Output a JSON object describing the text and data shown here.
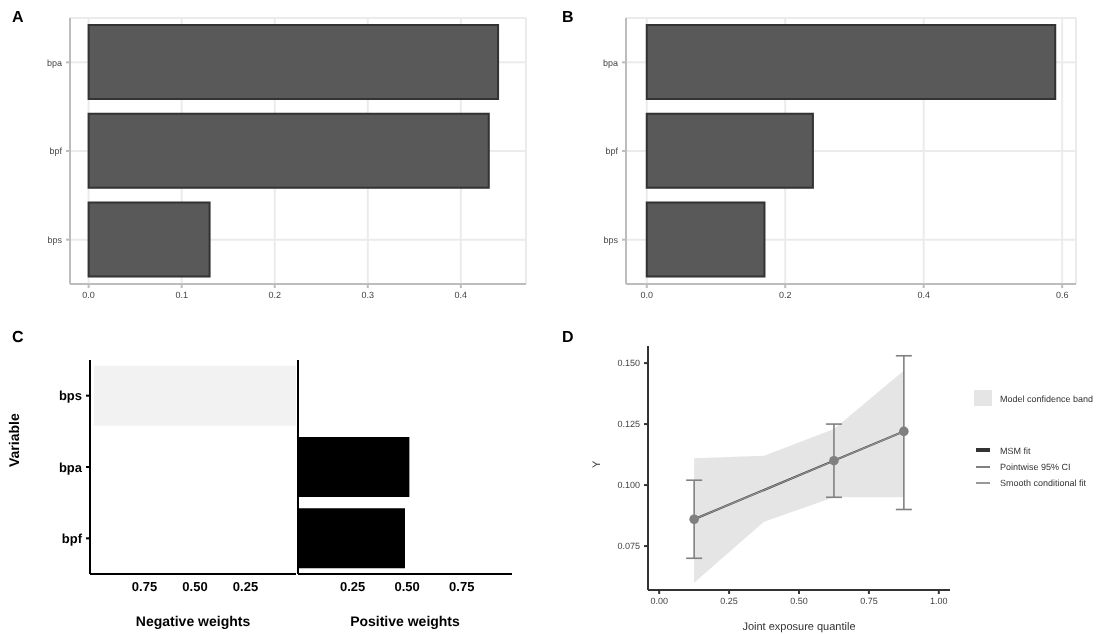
{
  "chart_data": [
    {
      "type": "bar",
      "orientation": "horizontal",
      "title": "A",
      "categories": [
        "bpa",
        "bpf",
        "bps"
      ],
      "values": [
        0.44,
        0.43,
        0.13
      ],
      "color": "#595959",
      "xlim": [
        -0.02,
        0.47
      ],
      "xticks": [
        {
          "value": 0,
          "label": "0.0"
        },
        0.1,
        0.2,
        0.3,
        0.4
      ],
      "grid": true
    },
    {
      "type": "bar",
      "orientation": "horizontal",
      "title": "B",
      "categories": [
        "bpa",
        "bpf",
        "bps"
      ],
      "values": [
        0.59,
        0.24,
        0.17
      ],
      "color": "#595959",
      "xlim": [
        -0.03,
        0.62
      ],
      "xticks": [
        {
          "value": 0,
          "label": "0.0"
        },
        0.2,
        0.4,
        0.6
      ],
      "grid": true
    },
    {
      "type": "bar",
      "orientation": "horizontal",
      "title": "C",
      "ylabel": "Variable",
      "xlabel": "Negative weights",
      "categories": [
        "bps",
        "bpa",
        "bpf"
      ],
      "values": [
        1.0,
        null,
        null
      ],
      "color": "#f2f2f2",
      "xlim": [
        1.02,
        0
      ],
      "xticks": [
        0.75,
        {
          "value": 0.5,
          "label": "0.50"
        },
        0.25
      ]
    },
    {
      "type": "bar",
      "orientation": "horizontal",
      "xlabel": "Positive weights",
      "categories": [
        null,
        null,
        null
      ],
      "values": [
        null,
        0.51,
        0.49
      ],
      "color": "#000000",
      "xlim": [
        0,
        0.98
      ],
      "xticks": [
        0.25,
        {
          "value": 0.5,
          "label": "0.50"
        },
        0.75
      ],
      "tick_labels": "x"
    },
    {
      "type": "line",
      "title": "D",
      "xlabel": "Joint exposure quantile",
      "ylabel": "Y",
      "xlim": [
        -0.04,
        1.04
      ],
      "xticks": [
        {
          "value": 0,
          "label": "0.00"
        },
        0.25,
        {
          "value": 0.5,
          "label": "0.50"
        },
        0.75,
        {
          "value": 1,
          "label": "1.00"
        }
      ],
      "ylim": [
        0.057,
        0.157
      ],
      "yticks": [
        0.075,
        {
          "value": 0.1,
          "label": "0.100"
        },
        0.125,
        {
          "value": 0.15,
          "label": "0.150"
        }
      ],
      "legend": "right",
      "annotations": [
        "Model confidence band"
      ],
      "series": [
        {
          "name": "MSM fit",
          "type": "line",
          "color": "#333333",
          "x": [
            0.125,
            0.375,
            0.625,
            0.875
          ],
          "values": [
            0.086,
            0.098,
            0.11,
            0.122
          ],
          "lower": [
            0.06,
            0.085,
            0.095,
            0.095
          ],
          "upper": [
            0.111,
            0.112,
            0.123,
            0.147
          ]
        },
        {
          "name": "Pointwise 95% CI",
          "type": "scatter",
          "marker": "circle",
          "color": "#808080",
          "x": [
            0.125,
            0.625,
            0.875
          ],
          "values": [
            0.086,
            0.11,
            0.122
          ],
          "errors": [
            [
              0.07,
              0.102
            ],
            [
              0.095,
              0.125
            ],
            [
              0.09,
              0.153
            ]
          ]
        },
        {
          "name": "Smooth conditional fit",
          "type": "line",
          "color": "#999999",
          "x": [
            0.125,
            0.375,
            0.625,
            0.875
          ],
          "values": [
            0.086,
            0.098,
            0.11,
            0.122
          ]
        }
      ]
    }
  ]
}
